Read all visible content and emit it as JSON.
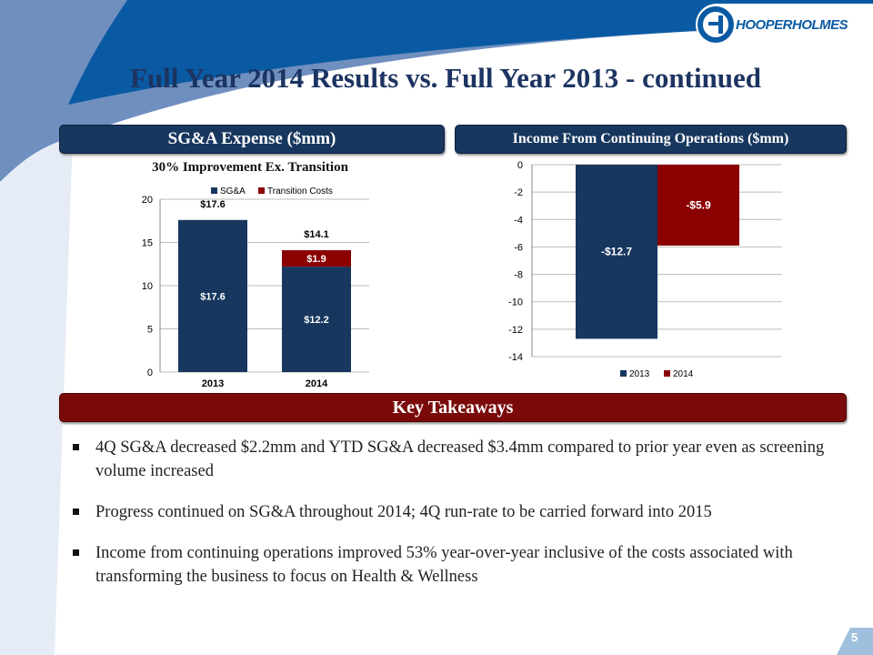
{
  "header": {
    "title": "Full Year 2014 Results vs. Full Year 2013 - continued",
    "logo_text": "HOOPERHOLMES",
    "page_number": "5"
  },
  "left_panel": {
    "banner": "SG&A Expense ($mm)",
    "subtitle": "30% Improvement Ex. Transition"
  },
  "right_panel": {
    "banner": "Income From Continuing Operations ($mm)"
  },
  "takeaways": {
    "banner": "Key Takeaways",
    "bullets": [
      "4Q SG&A decreased $2.2mm and YTD SG&A decreased $3.4mm compared to prior year even as screening volume increased",
      "Progress continued on SG&A throughout 2014; 4Q run-rate to be carried forward into 2015",
      "Income from continuing operations improved 53% year-over-year inclusive of the costs associated with transforming the business to focus on Health & Wellness"
    ]
  },
  "colors": {
    "navy": "#17375e",
    "red": "#8b0000"
  },
  "chart_data": [
    {
      "type": "bar",
      "stacked": true,
      "categories": [
        "2013",
        "2014"
      ],
      "series": [
        {
          "name": "SG&A",
          "values": [
            17.6,
            12.2
          ],
          "labels": [
            "$17.6",
            "$12.2"
          ],
          "color": "#17375e"
        },
        {
          "name": "Transition Costs",
          "values": [
            0,
            1.9
          ],
          "labels": [
            "",
            "$1.9"
          ],
          "color": "#8b0000"
        }
      ],
      "totals": [
        "$17.6",
        "$14.1"
      ],
      "ylim": [
        0,
        20
      ],
      "yticks": [
        "0",
        "5",
        "10",
        "15",
        "20"
      ],
      "legend": "top"
    },
    {
      "type": "bar",
      "categories": [
        ""
      ],
      "series": [
        {
          "name": "2013",
          "values": [
            -12.7
          ],
          "labels": [
            "-$12.7"
          ],
          "color": "#17375e"
        },
        {
          "name": "2014",
          "values": [
            -5.9
          ],
          "labels": [
            "-$5.9"
          ],
          "color": "#8b0000"
        }
      ],
      "ylim": [
        -14,
        0
      ],
      "yticks": [
        "0",
        "-2",
        "-4",
        "-6",
        "-8",
        "-10",
        "-12",
        "-14"
      ],
      "legend": "bottom"
    }
  ]
}
